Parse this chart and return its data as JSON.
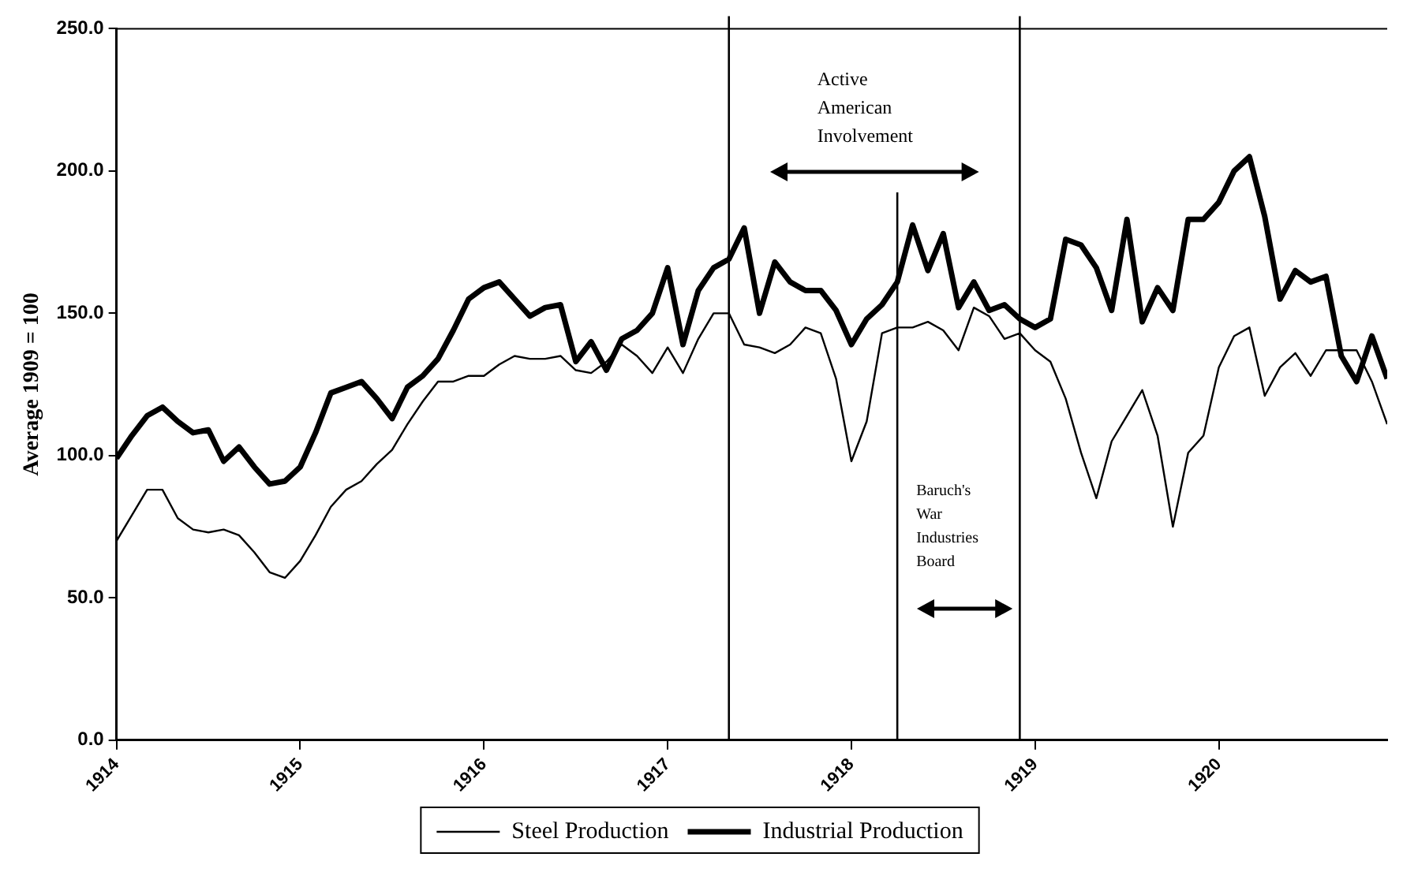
{
  "chart_data": {
    "type": "line",
    "ylabel": "Average 1909 = 100",
    "x": [
      "1914-01",
      "1914-02",
      "1914-03",
      "1914-04",
      "1914-05",
      "1914-06",
      "1914-07",
      "1914-08",
      "1914-09",
      "1914-10",
      "1914-11",
      "1914-12",
      "1915-01",
      "1915-02",
      "1915-03",
      "1915-04",
      "1915-05",
      "1915-06",
      "1915-07",
      "1915-08",
      "1915-09",
      "1915-10",
      "1915-11",
      "1915-12",
      "1916-01",
      "1916-02",
      "1916-03",
      "1916-04",
      "1916-05",
      "1916-06",
      "1916-07",
      "1916-08",
      "1916-09",
      "1916-10",
      "1916-11",
      "1916-12",
      "1917-01",
      "1917-02",
      "1917-03",
      "1917-04",
      "1917-05",
      "1917-06",
      "1917-07",
      "1917-08",
      "1917-09",
      "1917-10",
      "1917-11",
      "1917-12",
      "1918-01",
      "1918-02",
      "1918-03",
      "1918-04",
      "1918-05",
      "1918-06",
      "1918-07",
      "1918-08",
      "1918-09",
      "1918-10",
      "1918-11",
      "1918-12",
      "1919-01",
      "1919-02",
      "1919-03",
      "1919-04",
      "1919-05",
      "1919-06",
      "1919-07",
      "1919-08",
      "1919-09",
      "1919-10",
      "1919-11",
      "1919-12",
      "1920-01",
      "1920-02",
      "1920-03",
      "1920-04",
      "1920-05",
      "1920-06",
      "1920-07",
      "1920-08",
      "1920-09",
      "1920-10",
      "1920-11",
      "1920-12"
    ],
    "series": [
      {
        "name": "Steel Production",
        "color": "#000000",
        "values": [
          70,
          79,
          88,
          88,
          78,
          74,
          73,
          74,
          72,
          66,
          59,
          57,
          63,
          72,
          82,
          88,
          91,
          97,
          102,
          111,
          119,
          126,
          126,
          128,
          128,
          132,
          135,
          134,
          134,
          135,
          130,
          129,
          133,
          139,
          135,
          129,
          138,
          129,
          141,
          150,
          150,
          139,
          138,
          136,
          139,
          145,
          143,
          127,
          98,
          112,
          143,
          145,
          145,
          147,
          144,
          137,
          152,
          149,
          141,
          143,
          137,
          133,
          120,
          101,
          85,
          105,
          114,
          123,
          107,
          75,
          101,
          107,
          131,
          142,
          145,
          121,
          131,
          136,
          128,
          137,
          137,
          137,
          126,
          111
        ]
      },
      {
        "name": "Industrial Production",
        "color": "#000000",
        "values": [
          99,
          107,
          114,
          117,
          112,
          108,
          109,
          98,
          103,
          96,
          90,
          91,
          96,
          108,
          122,
          124,
          126,
          120,
          113,
          124,
          128,
          134,
          144,
          155,
          159,
          161,
          155,
          149,
          152,
          153,
          133,
          140,
          130,
          141,
          144,
          150,
          166,
          139,
          158,
          166,
          169,
          180,
          150,
          168,
          161,
          158,
          158,
          151,
          139,
          148,
          153,
          161,
          181,
          165,
          178,
          152,
          161,
          151,
          153,
          148,
          145,
          148,
          176,
          174,
          166,
          151,
          183,
          147,
          159,
          151,
          183,
          183,
          189,
          200,
          205,
          184,
          155,
          165,
          161,
          163,
          135,
          126,
          142,
          127
        ]
      }
    ],
    "xlim": [
      "1914-01",
      "1920-12"
    ],
    "xticks": [
      {
        "value": "1914-01",
        "label": "1914"
      },
      {
        "value": "1915-01",
        "label": "1915"
      },
      {
        "value": "1916-01",
        "label": "1916"
      },
      {
        "value": "1917-01",
        "label": "1917"
      },
      {
        "value": "1918-01",
        "label": "1918"
      },
      {
        "value": "1919-01",
        "label": "1919"
      },
      {
        "value": "1920-01",
        "label": "1920"
      }
    ],
    "ylim": [
      0,
      250
    ],
    "yticks": [
      {
        "value": 0,
        "label": "0.0"
      },
      {
        "value": 50,
        "label": "50.0"
      },
      {
        "value": 100,
        "label": "100.0"
      },
      {
        "value": 150,
        "label": "150.0"
      },
      {
        "value": 200,
        "label": "200.0"
      },
      {
        "value": 250,
        "label": "250.0"
      }
    ],
    "ref_lines": [
      {
        "axis": "x",
        "value": "1917-05",
        "color": "#000000"
      },
      {
        "axis": "x",
        "value": "1918-04",
        "color": "#000000"
      },
      {
        "axis": "x",
        "value": "1918-12",
        "color": "#000000"
      }
    ],
    "annotations": [
      "Active American Involvement",
      "Baruch's War Industries Board"
    ],
    "legend": "bottom",
    "grid": false,
    "marker": "none",
    "line_style": "solid"
  }
}
